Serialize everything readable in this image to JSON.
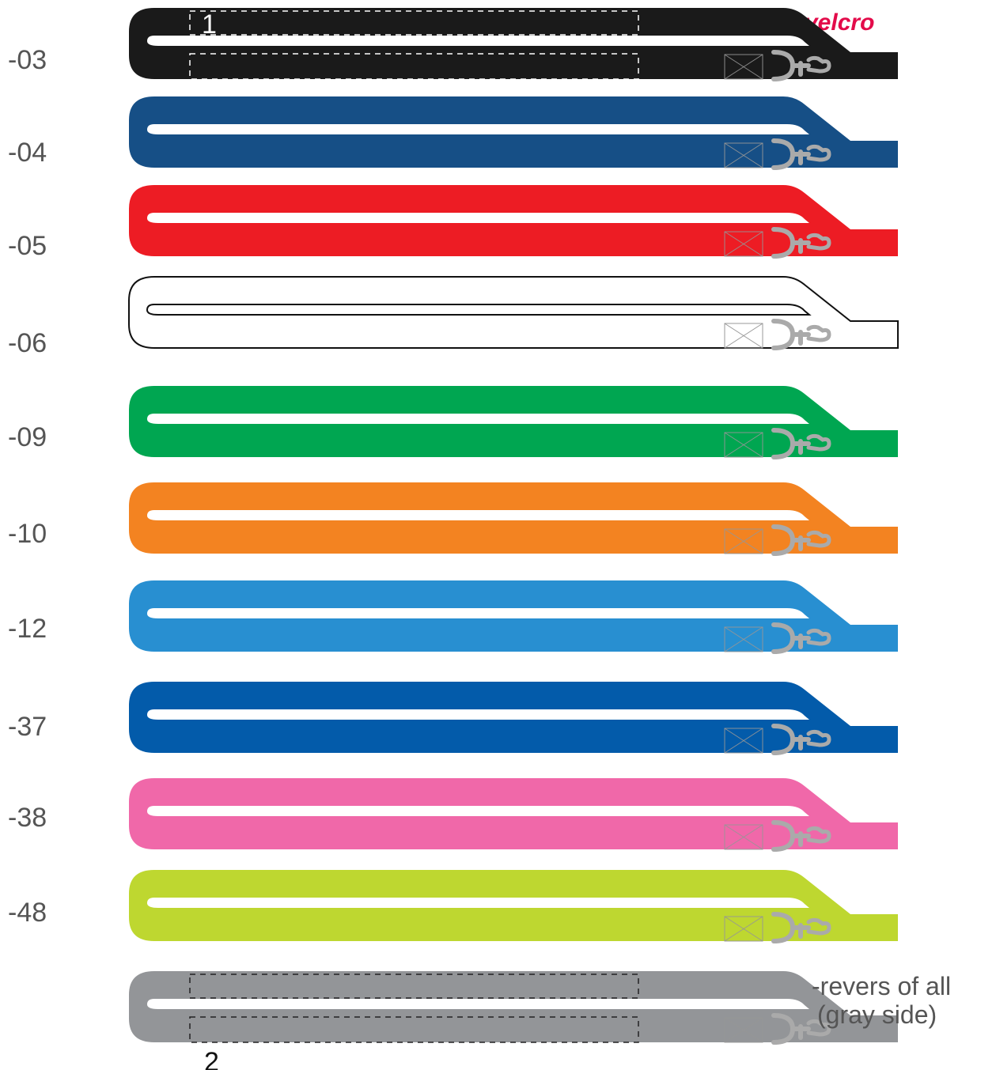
{
  "header": {
    "velcro_label": "velcro"
  },
  "variants": [
    {
      "code": "-03",
      "color": "#1a1a1a",
      "zone_outline": "#ffffff",
      "zone_label": "1"
    },
    {
      "code": "-04",
      "color": "#164f86"
    },
    {
      "code": "-05",
      "color": "#ed1c24"
    },
    {
      "code": "-06",
      "color": "#ffffff",
      "outlined": true
    },
    {
      "code": "-09",
      "color": "#00a651"
    },
    {
      "code": "-10",
      "color": "#f38321"
    },
    {
      "code": "-12",
      "color": "#288fd1"
    },
    {
      "code": "-37",
      "color": "#035baa"
    },
    {
      "code": "-38",
      "color": "#f068a9"
    },
    {
      "code": "-48",
      "color": "#bed730"
    },
    {
      "code": "",
      "color": "#939598",
      "zone_outline": "#222222",
      "zone_label": "2",
      "label_lines": [
        "-revers of all",
        "(gray side)"
      ]
    }
  ],
  "icons": {
    "hook": "snap-hook-icon",
    "patch": "velcro-patch-icon"
  },
  "hook_color": "#aaaaaa"
}
